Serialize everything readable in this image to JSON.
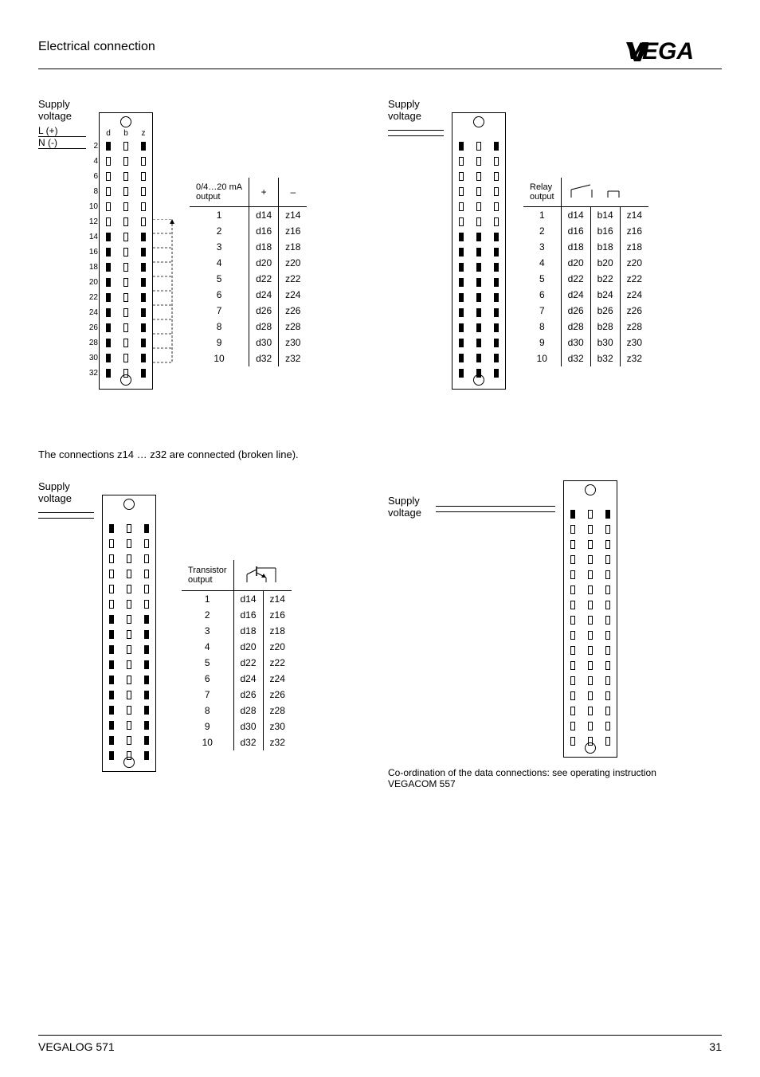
{
  "header": {
    "section": "Electrical connection",
    "brand_glyphs": "VEGA"
  },
  "footer": {
    "product": "VEGALOG 571",
    "page": "31"
  },
  "labels": {
    "supply_voltage": "Supply\nvoltage",
    "L": "L (+)",
    "N": "N (-)",
    "current_out": "0/4…20 mA\noutput",
    "relay_out": "Relay\noutput",
    "trans_out": "Transistor\noutput",
    "note_broken": "The connections z14 … z32 are connected (broken line).",
    "footnote_tr": "Co-ordination of the data connections: see operating instruction\nVEGACOM 557"
  },
  "connector": {
    "header": [
      "d",
      "b",
      "z"
    ],
    "num_rows": [
      "2",
      "4",
      "6",
      "8",
      "10",
      "12",
      "14",
      "16",
      "18",
      "20",
      "22",
      "24",
      "26",
      "28",
      "30",
      "32"
    ]
  },
  "tables": {
    "current": {
      "cols_sym": [
        "+",
        "–"
      ],
      "rows": [
        [
          "1",
          "d14",
          "z14"
        ],
        [
          "2",
          "d16",
          "z16"
        ],
        [
          "3",
          "d18",
          "z18"
        ],
        [
          "4",
          "d20",
          "z20"
        ],
        [
          "5",
          "d22",
          "z22"
        ],
        [
          "6",
          "d24",
          "z24"
        ],
        [
          "7",
          "d26",
          "z26"
        ],
        [
          "8",
          "d28",
          "z28"
        ],
        [
          "9",
          "d30",
          "z30"
        ],
        [
          "10",
          "d32",
          "z32"
        ]
      ]
    },
    "relay": {
      "rows": [
        [
          "1",
          "d14",
          "b14",
          "z14"
        ],
        [
          "2",
          "d16",
          "b16",
          "z16"
        ],
        [
          "3",
          "d18",
          "b18",
          "z18"
        ],
        [
          "4",
          "d20",
          "b20",
          "z20"
        ],
        [
          "5",
          "d22",
          "b22",
          "z22"
        ],
        [
          "6",
          "d24",
          "b24",
          "z24"
        ],
        [
          "7",
          "d26",
          "b26",
          "z26"
        ],
        [
          "8",
          "d28",
          "b28",
          "z28"
        ],
        [
          "9",
          "d30",
          "b30",
          "z30"
        ],
        [
          "10",
          "d32",
          "b32",
          "z32"
        ]
      ]
    },
    "trans": {
      "rows": [
        [
          "1",
          "d14",
          "z14"
        ],
        [
          "2",
          "d16",
          "z16"
        ],
        [
          "3",
          "d18",
          "z18"
        ],
        [
          "4",
          "d20",
          "z20"
        ],
        [
          "5",
          "d22",
          "z22"
        ],
        [
          "6",
          "d24",
          "z24"
        ],
        [
          "7",
          "d26",
          "z26"
        ],
        [
          "8",
          "d28",
          "z28"
        ],
        [
          "9",
          "d30",
          "z30"
        ],
        [
          "10",
          "d32",
          "z32"
        ]
      ]
    }
  },
  "pin_patterns": {
    "tl_d": [
      "f",
      "e",
      "e",
      "e",
      "e",
      "e",
      "f",
      "f",
      "f",
      "f",
      "f",
      "f",
      "f",
      "f",
      "f",
      "f"
    ],
    "tl_b": [
      "e",
      "e",
      "e",
      "e",
      "e",
      "e",
      "e",
      "e",
      "e",
      "e",
      "e",
      "e",
      "e",
      "e",
      "e",
      "e"
    ],
    "tl_z": [
      "f",
      "e",
      "e",
      "e",
      "e",
      "e",
      "f",
      "f",
      "f",
      "f",
      "f",
      "f",
      "f",
      "f",
      "f",
      "f"
    ],
    "tr_d": [
      "f",
      "e",
      "e",
      "e",
      "e",
      "e",
      "f",
      "f",
      "f",
      "f",
      "f",
      "f",
      "f",
      "f",
      "f",
      "f"
    ],
    "tr_b": [
      "e",
      "e",
      "e",
      "e",
      "e",
      "e",
      "f",
      "f",
      "f",
      "f",
      "f",
      "f",
      "f",
      "f",
      "f",
      "f"
    ],
    "tr_z": [
      "f",
      "e",
      "e",
      "e",
      "e",
      "e",
      "f",
      "f",
      "f",
      "f",
      "f",
      "f",
      "f",
      "f",
      "f",
      "f"
    ],
    "bl_d": [
      "f",
      "e",
      "e",
      "e",
      "e",
      "e",
      "f",
      "f",
      "f",
      "f",
      "f",
      "f",
      "f",
      "f",
      "f",
      "f"
    ],
    "bl_b": [
      "e",
      "e",
      "e",
      "e",
      "e",
      "e",
      "e",
      "e",
      "e",
      "e",
      "e",
      "e",
      "e",
      "e",
      "e",
      "e"
    ],
    "bl_z": [
      "f",
      "e",
      "e",
      "e",
      "e",
      "e",
      "f",
      "f",
      "f",
      "f",
      "f",
      "f",
      "f",
      "f",
      "f",
      "f"
    ],
    "br_d": [
      "f",
      "e",
      "e",
      "e",
      "e",
      "e",
      "e",
      "e",
      "e",
      "e",
      "e",
      "e",
      "e",
      "e",
      "e",
      "e"
    ],
    "br_b": [
      "e",
      "e",
      "e",
      "e",
      "e",
      "e",
      "e",
      "e",
      "e",
      "e",
      "e",
      "e",
      "e",
      "e",
      "e",
      "e"
    ],
    "br_z": [
      "f",
      "e",
      "e",
      "e",
      "e",
      "e",
      "e",
      "e",
      "e",
      "e",
      "e",
      "e",
      "e",
      "e",
      "e",
      "e"
    ]
  },
  "colors": {
    "line": "#000000",
    "bg": "#ffffff"
  }
}
